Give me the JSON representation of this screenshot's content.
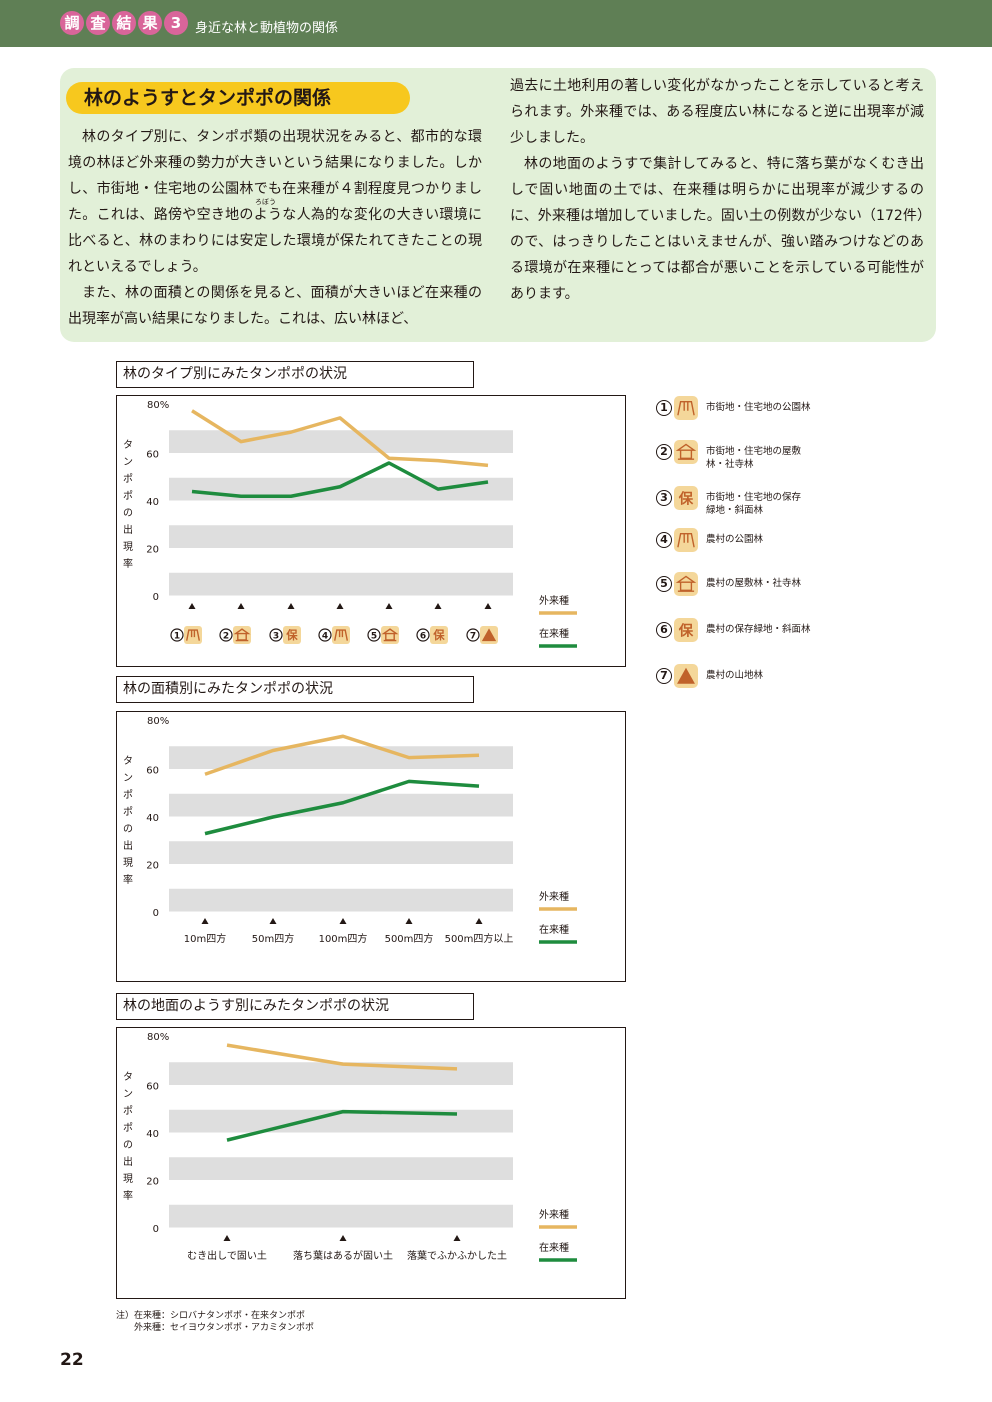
{
  "header": {
    "chars": [
      "調",
      "査",
      "結",
      "果",
      "3"
    ],
    "subtitle": "身近な林と動植物の関係"
  },
  "intro": {
    "title": "林のようすとタンポポの関係",
    "left_paragraphs": [
      "林のタイプ別に、タンポポ類の出現状況をみると、都市的な環境の林ほど外来種の勢力が大きいという結果になりました。しかし、市街地・住宅地の公園林でも在来種が４割程度見つかりました。これは、路傍や空き地のような人為的な変化の大きい環境に比べると、林のまわりには安定した環境が保たれてきたことの現れといえるでしょう。",
      "また、林の面積との関係を見ると、面積が大きいほど在来種の出現率が高い結果になりました。これは、広い林ほど、"
    ],
    "ruby_note": "ろぼう",
    "right_paragraphs": [
      "過去に土地利用の著しい変化がなかったことを示していると考えられます。外来種では、ある程度広い林になると逆に出現率が減少しました。",
      "林の地面のようすで集計してみると、特に落ち葉がなくむき出しで固い地面の土では、在来種は明らかに出現率が減少するのに、外来種は増加していました。固い土の例数が少ない（172件）ので、はっきりしたことはいえませんが、強い踏みつけなどのある環境が在来種にとっては都合が悪いことを示している可能性があります。"
    ]
  },
  "colors": {
    "header_bg": "#5f7f55",
    "header_circle": "#d9659a",
    "panel_bg": "#e2f0d8",
    "title_bg": "#f7c81e",
    "alien": "#e6b660",
    "native": "#1e8c3e",
    "band": "#dedede"
  },
  "axis": {
    "y_label_chars": [
      "タ",
      "ン",
      "ポ",
      "ポ",
      "の",
      "出",
      "現",
      "率"
    ],
    "y_ticks": [
      "0",
      "20",
      "40",
      "60",
      "80%"
    ]
  },
  "series_names": {
    "alien": "外来種",
    "native": "在来種"
  },
  "legend": {
    "items": [
      {
        "num": "1",
        "icon": "swing-icon",
        "text": "市街地・住宅地の公園林"
      },
      {
        "num": "2",
        "icon": "shrine-icon",
        "text": "市街地・住宅地の屋敷林・社寺林"
      },
      {
        "num": "3",
        "icon": "protect-icon",
        "text": "市街地・住宅地の保存緑地・斜面林"
      },
      {
        "num": "4",
        "icon": "swing-icon",
        "text": "農村の公園林"
      },
      {
        "num": "5",
        "icon": "shrine-icon",
        "text": "農村の屋敷林・社寺林"
      },
      {
        "num": "6",
        "icon": "protect-icon",
        "text": "農村の保存緑地・斜面林"
      },
      {
        "num": "7",
        "icon": "mountain-icon",
        "text": "農村の山地林"
      }
    ]
  },
  "chart_data": [
    {
      "type": "line",
      "title": "林のタイプ別にみたタンポポの状況",
      "ylabel": "タンポポの出現率",
      "ylim": [
        0,
        80
      ],
      "categories": [
        "1",
        "2",
        "3",
        "4",
        "5",
        "6",
        "7"
      ],
      "category_icons": [
        "swing-icon",
        "shrine-icon",
        "protect-icon",
        "swing-icon",
        "shrine-icon",
        "protect-icon",
        "mountain-icon"
      ],
      "series": [
        {
          "name": "外来種",
          "values": [
            78,
            65,
            69,
            75,
            58,
            57,
            55
          ]
        },
        {
          "name": "在来種",
          "values": [
            44,
            42,
            42,
            46,
            56,
            45,
            48
          ]
        }
      ],
      "legend": "right"
    },
    {
      "type": "line",
      "title": "林の面積別にみたタンポポの状況",
      "ylabel": "タンポポの出現率",
      "ylim": [
        0,
        80
      ],
      "categories": [
        "10m四方",
        "50m四方",
        "100m四方",
        "500m四方",
        "500m四方以上"
      ],
      "series": [
        {
          "name": "外来種",
          "values": [
            58,
            68,
            74,
            65,
            66
          ]
        },
        {
          "name": "在来種",
          "values": [
            33,
            40,
            46,
            55,
            53
          ]
        }
      ],
      "legend": "right"
    },
    {
      "type": "line",
      "title": "林の地面のようす別にみたタンポポの状況",
      "ylabel": "タンポポの出現率",
      "ylim": [
        0,
        80
      ],
      "categories": [
        "むき出しで固い土",
        "落ち葉はあるが固い土",
        "落葉でふかふかした土"
      ],
      "series": [
        {
          "name": "外来種",
          "values": [
            77,
            69,
            67
          ]
        },
        {
          "name": "在来種",
          "values": [
            37,
            49,
            48
          ]
        }
      ],
      "legend": "right"
    }
  ],
  "note": {
    "line1": "注）在来種：シロバナタンポポ・在来タンポポ",
    "line2": "　　外来種：セイヨウタンポポ・アカミタンポポ"
  },
  "page_number": "22"
}
